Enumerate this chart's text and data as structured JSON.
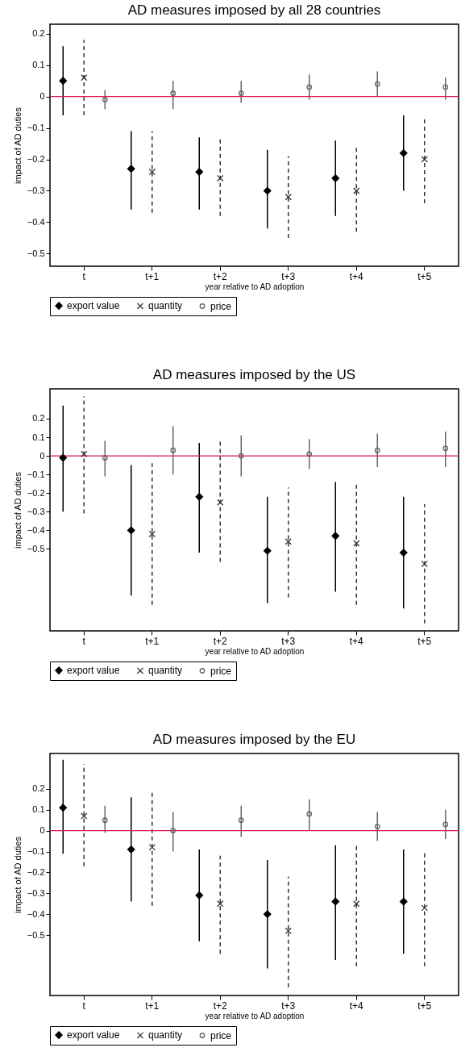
{
  "chart_data": [
    {
      "type": "scatter",
      "title": "AD measures imposed by all 28 countries",
      "xlabel": "year relative to AD adoption",
      "ylabel": "impact of AD duties",
      "categories": [
        "t",
        "t+1",
        "t+2",
        "t+3",
        "t+4",
        "t+5"
      ],
      "series": [
        {
          "name": "export value",
          "color": "#000000",
          "marker": "diamond",
          "line_style": "solid",
          "values": [
            0.05,
            -0.23,
            -0.24,
            -0.3,
            -0.26,
            -0.18
          ],
          "errors": [
            [
              -0.06,
              0.16
            ],
            [
              -0.36,
              -0.11
            ],
            [
              -0.36,
              -0.13
            ],
            [
              -0.42,
              -0.17
            ],
            [
              -0.38,
              -0.14
            ],
            [
              -0.3,
              -0.06
            ]
          ]
        },
        {
          "name": "quantity",
          "color": "#333333",
          "marker": "cross",
          "line_style": "dashed",
          "values": [
            0.06,
            -0.24,
            -0.26,
            -0.32,
            -0.3,
            -0.2
          ],
          "errors": [
            [
              -0.06,
              0.18
            ],
            [
              -0.37,
              -0.11
            ],
            [
              -0.38,
              -0.13
            ],
            [
              -0.45,
              -0.19
            ],
            [
              -0.43,
              -0.16
            ],
            [
              -0.34,
              -0.07
            ]
          ]
        },
        {
          "name": "price",
          "color": "#666666",
          "marker": "circle",
          "line_style": "solid",
          "values": [
            -0.01,
            0.01,
            0.01,
            0.03,
            0.04,
            0.03
          ],
          "errors": [
            [
              -0.04,
              0.02
            ],
            [
              -0.04,
              0.05
            ],
            [
              -0.02,
              0.05
            ],
            [
              -0.01,
              0.07
            ],
            [
              0.0,
              0.08
            ],
            [
              -0.01,
              0.06
            ]
          ]
        }
      ],
      "ylim": [
        -0.54,
        0.23
      ],
      "yticks": [
        -0.5,
        -0.4,
        -0.3,
        -0.2,
        -0.1,
        0,
        0.1,
        0.2
      ],
      "ref_lines": [
        {
          "axis": "y",
          "value": 0,
          "color": "#d81b4a"
        }
      ],
      "legend": "bottom"
    },
    {
      "type": "scatter",
      "title": "AD measures imposed by the US",
      "xlabel": "year relative to AD adoption",
      "ylabel": "impact of AD duties",
      "categories": [
        "t",
        "t+1",
        "t+2",
        "t+3",
        "t+4",
        "t+5"
      ],
      "series": [
        {
          "name": "export value",
          "color": "#000000",
          "marker": "diamond",
          "line_style": "solid",
          "values": [
            -0.01,
            -0.4,
            -0.22,
            -0.51,
            -0.43,
            -0.52
          ],
          "errors": [
            [
              -0.3,
              0.27
            ],
            [
              -0.75,
              -0.05
            ],
            [
              -0.52,
              0.07
            ],
            [
              -0.79,
              -0.22
            ],
            [
              -0.73,
              -0.14
            ],
            [
              -0.82,
              -0.22
            ]
          ]
        },
        {
          "name": "quantity",
          "color": "#333333",
          "marker": "cross",
          "line_style": "dashed",
          "values": [
            0.01,
            -0.42,
            -0.25,
            -0.46,
            -0.47,
            -0.58
          ],
          "errors": [
            [
              -0.31,
              0.32
            ],
            [
              -0.8,
              -0.04
            ],
            [
              -0.57,
              0.08
            ],
            [
              -0.76,
              -0.17
            ],
            [
              -0.8,
              -0.15
            ],
            [
              -0.9,
              -0.26
            ]
          ]
        },
        {
          "name": "price",
          "color": "#666666",
          "marker": "circle",
          "line_style": "solid",
          "values": [
            -0.01,
            0.03,
            0.0,
            0.01,
            0.03,
            0.04
          ],
          "errors": [
            [
              -0.11,
              0.08
            ],
            [
              -0.1,
              0.16
            ],
            [
              -0.11,
              0.11
            ],
            [
              -0.07,
              0.09
            ],
            [
              -0.06,
              0.12
            ],
            [
              -0.06,
              0.13
            ]
          ]
        }
      ],
      "ylim": [
        -0.94,
        0.36
      ],
      "yticks": [
        -0.5,
        -0.4,
        -0.3,
        -0.2,
        -0.1,
        0,
        0.1,
        0.2
      ],
      "ref_lines": [
        {
          "axis": "y",
          "value": 0,
          "color": "#d81b4a"
        }
      ],
      "legend": "bottom"
    },
    {
      "type": "scatter",
      "title": "AD measures imposed by the EU",
      "xlabel": "year relative to AD adoption",
      "ylabel": "impact of AD duties",
      "categories": [
        "t",
        "t+1",
        "t+2",
        "t+3",
        "t+4",
        "t+5"
      ],
      "series": [
        {
          "name": "export value",
          "color": "#000000",
          "marker": "diamond",
          "line_style": "solid",
          "values": [
            0.11,
            -0.09,
            -0.31,
            -0.4,
            -0.34,
            -0.34
          ],
          "errors": [
            [
              -0.11,
              0.34
            ],
            [
              -0.34,
              0.16
            ],
            [
              -0.53,
              -0.09
            ],
            [
              -0.66,
              -0.14
            ],
            [
              -0.62,
              -0.07
            ],
            [
              -0.59,
              -0.09
            ]
          ]
        },
        {
          "name": "quantity",
          "color": "#333333",
          "marker": "cross",
          "line_style": "dashed",
          "values": [
            0.07,
            -0.08,
            -0.35,
            -0.48,
            -0.35,
            -0.37
          ],
          "errors": [
            [
              -0.17,
              0.32
            ],
            [
              -0.36,
              0.19
            ],
            [
              -0.59,
              -0.12
            ],
            [
              -0.75,
              -0.22
            ],
            [
              -0.65,
              -0.06
            ],
            [
              -0.65,
              -0.1
            ]
          ]
        },
        {
          "name": "price",
          "color": "#666666",
          "marker": "circle",
          "line_style": "solid",
          "values": [
            0.05,
            0.0,
            0.05,
            0.08,
            0.02,
            0.03
          ],
          "errors": [
            [
              -0.01,
              0.12
            ],
            [
              -0.1,
              0.09
            ],
            [
              -0.03,
              0.12
            ],
            [
              0.0,
              0.15
            ],
            [
              -0.05,
              0.09
            ],
            [
              -0.04,
              0.1
            ]
          ]
        }
      ],
      "ylim": [
        -0.79,
        0.37
      ],
      "yticks": [
        -0.5,
        -0.4,
        -0.3,
        -0.2,
        -0.1,
        0,
        0.1,
        0.2
      ],
      "ref_lines": [
        {
          "axis": "y",
          "value": 0,
          "color": "#d81b4a"
        }
      ],
      "legend": "bottom"
    }
  ]
}
